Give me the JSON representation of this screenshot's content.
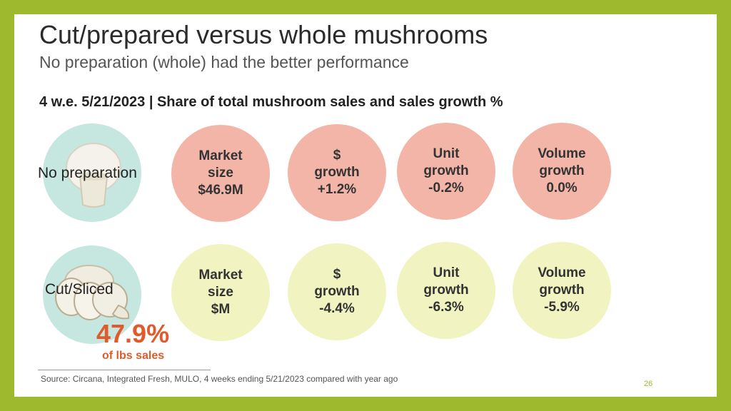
{
  "title": "Cut/prepared versus whole mushrooms",
  "subtitle": "No preparation (whole) had the better performance",
  "heading": "4 w.e. 5/21/2023 | Share of total mushroom sales and sales growth %",
  "rows": [
    {
      "label": "No preparation",
      "metrics": [
        {
          "line1": "Market",
          "line2": "size",
          "line3": "$46.9M"
        },
        {
          "line1": "$",
          "line2": "growth",
          "line3": "+1.2%"
        },
        {
          "line1": "Unit",
          "line2": "growth",
          "line3": "-0.2%"
        },
        {
          "line1": "Volume",
          "line2": "growth",
          "line3": "0.0%"
        }
      ]
    },
    {
      "label": "Cut/Sliced",
      "metrics": [
        {
          "line1": "Market",
          "line2": "size",
          "line3": "$M"
        },
        {
          "line1": "$",
          "line2": "growth",
          "line3": "-4.4%"
        },
        {
          "line1": "Unit",
          "line2": "growth",
          "line3": "-6.3%"
        },
        {
          "line1": "Volume",
          "line2": "growth",
          "line3": "-5.9%"
        }
      ]
    }
  ],
  "share": {
    "value": "47.9%",
    "label": "of lbs sales"
  },
  "source": "Source: Circana, Integrated Fresh, MULO, 4 weeks ending 5/21/2023 compared with year ago",
  "page_number": "26",
  "colors": {
    "border": "#9fb92e",
    "pink": "#f2b5a7",
    "yellow": "#f1f3c0",
    "teal": "#c6e6e0",
    "accent": "#e05a2b"
  }
}
